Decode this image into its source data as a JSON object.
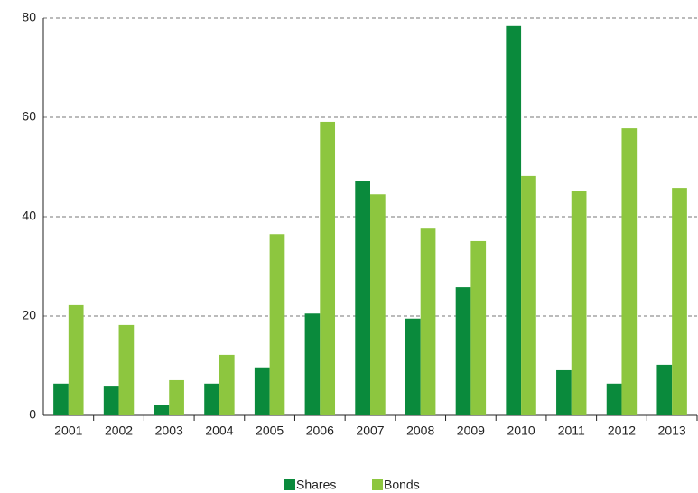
{
  "chart_data": {
    "type": "bar",
    "categories": [
      "2001",
      "2002",
      "2003",
      "2004",
      "2005",
      "2006",
      "2007",
      "2008",
      "2009",
      "2010",
      "2011",
      "2012",
      "2013"
    ],
    "series": [
      {
        "name": "Shares",
        "color": "#0a8a3c",
        "values": [
          6.4,
          5.8,
          2.0,
          6.4,
          9.5,
          20.5,
          47.1,
          19.5,
          25.8,
          78.4,
          9.1,
          6.4,
          10.2
        ]
      },
      {
        "name": "Bonds",
        "color": "#8dc63f",
        "values": [
          22.2,
          18.2,
          7.1,
          12.2,
          36.5,
          59.1,
          44.5,
          37.6,
          35.1,
          48.2,
          45.1,
          57.8,
          45.8
        ]
      }
    ],
    "ylim": [
      0,
      80
    ],
    "yticks": [
      0,
      20,
      40,
      60,
      80
    ],
    "grid": true,
    "legend": "bottom"
  }
}
